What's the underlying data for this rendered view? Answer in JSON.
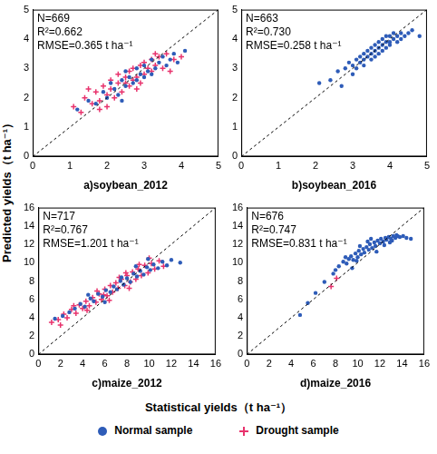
{
  "chart_data": [
    {
      "type": "scatter",
      "title": "a)soybean_2012",
      "annotations": [
        "N=669",
        "R²=0.662",
        "RMSE=0.365 t ha⁻¹"
      ],
      "xlim": [
        0,
        5
      ],
      "xticks": [
        0,
        1,
        2,
        3,
        4,
        5
      ],
      "ylim": [
        0,
        5
      ],
      "yticks": [
        0,
        1,
        2,
        3,
        4,
        5
      ],
      "grid": false,
      "legend": "bottom",
      "reference_line": {
        "x": [
          0,
          5
        ],
        "values": [
          0,
          5
        ]
      },
      "series": [
        {
          "name": "Normal sample",
          "color": "#2e5cb8",
          "marker": "circle",
          "x": [
            1.2,
            1.5,
            1.7,
            1.9,
            2.0,
            2.1,
            2.2,
            2.3,
            2.4,
            2.5,
            2.5,
            2.6,
            2.7,
            2.8,
            2.8,
            2.9,
            3.0,
            3.0,
            3.1,
            3.2,
            3.2,
            3.3,
            3.4,
            3.5,
            3.6,
            3.7,
            3.8,
            3.9,
            4.1,
            2.4
          ],
          "values": [
            1.6,
            1.9,
            1.8,
            2.2,
            2.0,
            2.5,
            2.3,
            2.1,
            2.6,
            2.4,
            2.9,
            2.7,
            2.5,
            3.0,
            2.6,
            2.8,
            3.1,
            2.7,
            2.9,
            3.3,
            2.8,
            3.0,
            3.2,
            3.4,
            3.1,
            3.3,
            3.5,
            3.2,
            3.6,
            1.9
          ]
        },
        {
          "name": "Drought sample",
          "color": "#e8336d",
          "marker": "cross",
          "x": [
            1.1,
            1.3,
            1.4,
            1.6,
            1.7,
            1.8,
            1.9,
            2.0,
            2.1,
            2.1,
            2.2,
            2.3,
            2.4,
            2.5,
            2.6,
            2.6,
            2.7,
            2.7,
            2.8,
            2.9,
            2.9,
            3.0,
            3.0,
            3.1,
            3.2,
            3.2,
            3.3,
            3.4,
            3.5,
            3.6,
            3.8,
            4.0,
            1.5,
            2.0,
            2.3,
            2.8,
            3.3,
            3.7,
            1.8,
            2.5
          ],
          "values": [
            1.7,
            1.5,
            2.0,
            1.8,
            2.2,
            1.9,
            2.4,
            2.1,
            2.3,
            2.6,
            2.0,
            2.5,
            2.2,
            2.7,
            2.4,
            2.9,
            2.6,
            3.0,
            2.7,
            2.5,
            3.1,
            2.8,
            3.2,
            3.0,
            2.9,
            3.3,
            3.1,
            3.4,
            3.0,
            3.5,
            3.3,
            3.4,
            2.3,
            1.7,
            2.8,
            2.3,
            3.5,
            2.9,
            1.6,
            2.5
          ]
        }
      ]
    },
    {
      "type": "scatter",
      "title": "b)soybean_2016",
      "annotations": [
        "N=663",
        "R²=0.730",
        "RMSE=0.258 t ha⁻¹"
      ],
      "xlim": [
        0,
        5
      ],
      "xticks": [
        0,
        1,
        2,
        3,
        4,
        5
      ],
      "ylim": [
        0,
        5
      ],
      "yticks": [
        0,
        1,
        2,
        3,
        4,
        5
      ],
      "grid": false,
      "legend": "bottom",
      "reference_line": {
        "x": [
          0,
          5
        ],
        "values": [
          0,
          5
        ]
      },
      "series": [
        {
          "name": "Normal sample",
          "color": "#2e5cb8",
          "marker": "circle",
          "x": [
            2.1,
            2.4,
            2.6,
            2.8,
            2.9,
            3.0,
            3.1,
            3.1,
            3.2,
            3.2,
            3.3,
            3.3,
            3.4,
            3.4,
            3.5,
            3.5,
            3.5,
            3.6,
            3.6,
            3.6,
            3.7,
            3.7,
            3.7,
            3.8,
            3.8,
            3.8,
            3.9,
            3.9,
            3.9,
            4.0,
            4.0,
            4.0,
            4.1,
            4.1,
            4.2,
            4.2,
            4.3,
            4.3,
            4.4,
            4.5,
            4.6,
            4.8,
            3.0,
            3.3,
            2.7
          ],
          "values": [
            2.5,
            2.6,
            2.9,
            3.0,
            3.2,
            3.1,
            3.3,
            3.0,
            3.4,
            3.2,
            3.5,
            3.3,
            3.6,
            3.4,
            3.7,
            3.5,
            3.3,
            3.8,
            3.6,
            3.4,
            3.9,
            3.7,
            3.5,
            4.0,
            3.8,
            3.6,
            4.1,
            3.9,
            3.7,
            4.1,
            3.9,
            3.8,
            4.2,
            4.0,
            4.1,
            3.9,
            4.2,
            4.0,
            4.1,
            4.2,
            4.3,
            4.1,
            2.8,
            3.1,
            2.4
          ]
        }
      ]
    },
    {
      "type": "scatter",
      "title": "c)maize_2012",
      "annotations": [
        "N=717",
        "R²=0.767",
        "RMSE=1.201 t ha⁻¹"
      ],
      "xlim": [
        0,
        16
      ],
      "xticks": [
        0,
        2,
        4,
        6,
        8,
        10,
        12,
        14,
        16
      ],
      "ylim": [
        0,
        16
      ],
      "yticks": [
        0,
        2,
        4,
        6,
        8,
        10,
        12,
        14,
        16
      ],
      "grid": false,
      "legend": "bottom",
      "reference_line": {
        "x": [
          0,
          16
        ],
        "values": [
          0,
          16
        ]
      },
      "series": [
        {
          "name": "Normal sample",
          "color": "#2e5cb8",
          "marker": "circle",
          "x": [
            1.5,
            2.2,
            2.8,
            3.3,
            3.8,
            4.2,
            4.7,
            5.0,
            5.4,
            5.8,
            6.1,
            6.5,
            6.8,
            7.1,
            7.4,
            7.7,
            8.0,
            8.3,
            8.6,
            8.9,
            9.2,
            9.5,
            9.8,
            10.1,
            10.4,
            10.8,
            11.2,
            11.6,
            12.0,
            12.8,
            6.0,
            7.5,
            8.8,
            9.9,
            4.5
          ],
          "values": [
            3.9,
            4.2,
            4.6,
            5.0,
            5.5,
            5.2,
            6.1,
            5.8,
            6.6,
            6.3,
            7.0,
            6.8,
            7.4,
            7.1,
            8.0,
            7.6,
            8.3,
            7.9,
            8.8,
            8.5,
            9.1,
            8.7,
            9.5,
            9.2,
            9.8,
            9.4,
            10.1,
            9.7,
            10.3,
            10.0,
            5.7,
            8.4,
            9.6,
            10.4,
            6.5
          ]
        },
        {
          "name": "Drought sample",
          "color": "#e8336d",
          "marker": "cross",
          "x": [
            1.2,
            1.8,
            2.3,
            2.6,
            3.0,
            3.4,
            3.7,
            4.0,
            4.3,
            4.6,
            4.9,
            5.2,
            5.5,
            5.7,
            6.0,
            6.2,
            6.5,
            6.7,
            7.0,
            7.2,
            7.5,
            7.8,
            8.0,
            8.3,
            8.5,
            8.8,
            9.0,
            9.3,
            9.6,
            9.9,
            10.2,
            10.5,
            10.9,
            11.3,
            2.0,
            3.2,
            4.4,
            5.3,
            6.4,
            7.3,
            8.2,
            9.1,
            10.0,
            5.9,
            7.9
          ],
          "values": [
            3.5,
            3.8,
            4.4,
            4.0,
            4.9,
            4.5,
            5.4,
            5.0,
            5.8,
            5.3,
            6.2,
            5.7,
            6.6,
            6.0,
            7.1,
            6.4,
            7.5,
            6.8,
            7.8,
            7.2,
            8.2,
            7.5,
            8.6,
            7.9,
            9.0,
            8.2,
            9.3,
            8.6,
            9.7,
            8.9,
            9.9,
            9.3,
            10.2,
            9.6,
            3.2,
            5.3,
            4.8,
            6.9,
            5.9,
            8.4,
            7.2,
            9.8,
            10.5,
            6.5,
            8.9
          ]
        }
      ]
    },
    {
      "type": "scatter",
      "title": "d)maize_2016",
      "annotations": [
        "N=676",
        "R²=0.747",
        "RMSE=0.831 t ha⁻¹"
      ],
      "xlim": [
        0,
        16
      ],
      "xticks": [
        0,
        2,
        4,
        6,
        8,
        10,
        12,
        14,
        16
      ],
      "ylim": [
        0,
        16
      ],
      "yticks": [
        0,
        2,
        4,
        6,
        8,
        10,
        12,
        14,
        16
      ],
      "grid": false,
      "legend": "bottom",
      "reference_line": {
        "x": [
          0,
          16
        ],
        "values": [
          0,
          16
        ]
      },
      "series": [
        {
          "name": "Normal sample",
          "color": "#2e5cb8",
          "marker": "circle",
          "x": [
            4.8,
            5.5,
            6.2,
            7.0,
            7.8,
            8.3,
            8.7,
            9.0,
            9.2,
            9.4,
            9.6,
            9.8,
            10.0,
            10.1,
            10.3,
            10.5,
            10.6,
            10.8,
            11.0,
            11.1,
            11.3,
            11.5,
            11.6,
            11.8,
            12.0,
            12.1,
            12.3,
            12.5,
            12.6,
            12.8,
            13.0,
            13.2,
            13.4,
            13.6,
            13.8,
            14.1,
            14.4,
            14.8,
            9.5,
            10.2,
            10.9,
            11.7,
            12.4,
            13.1,
            8.9,
            9.9,
            11.2,
            12.9,
            13.5,
            8.0
          ],
          "values": [
            4.3,
            5.6,
            6.7,
            7.9,
            8.8,
            9.6,
            10.1,
            9.9,
            10.4,
            10.7,
            10.3,
            11.0,
            10.6,
            11.3,
            10.9,
            11.5,
            11.1,
            11.7,
            11.4,
            12.0,
            11.6,
            12.2,
            11.8,
            12.4,
            12.1,
            12.6,
            12.3,
            12.7,
            12.5,
            12.8,
            12.6,
            12.9,
            12.7,
            12.9,
            12.8,
            12.9,
            12.7,
            12.6,
            9.4,
            11.8,
            12.3,
            11.2,
            11.9,
            12.4,
            10.6,
            10.2,
            12.6,
            12.2,
            13.0,
            9.2
          ]
        },
        {
          "name": "Drought sample",
          "color": "#e8336d",
          "marker": "cross",
          "x": [
            7.6,
            8.1
          ],
          "values": [
            7.4,
            8.3
          ]
        }
      ]
    }
  ],
  "xlabel": "Statistical yields（t ha⁻¹）",
  "ylabel": "Predicted yields（t ha⁻¹）"
}
